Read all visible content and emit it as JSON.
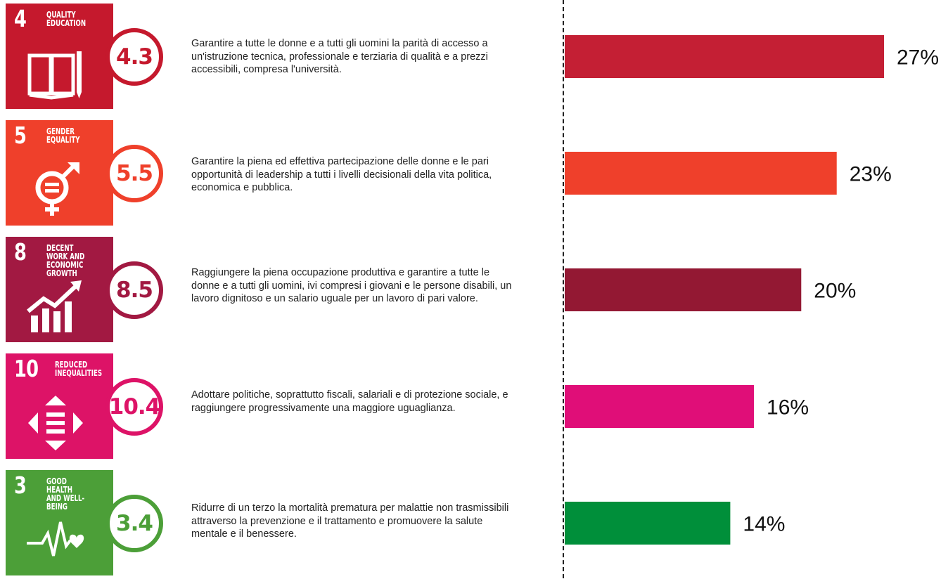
{
  "colors": {
    "goal4": "#C5192D",
    "goal5": "#EF402B",
    "goal8": "#A21942",
    "goal10": "#DD1367",
    "goal3": "#4C9F38",
    "bar4": "#C41F34",
    "bar5": "#EF402B",
    "bar8": "#931833",
    "bar10": "#E00E78",
    "bar3": "#008F3A"
  },
  "goals": [
    {
      "number": "4",
      "title": "QUALITY\nEDUCATION",
      "icon": "book-pencil-icon",
      "target": "4.3",
      "description": "Garantire a tutte le donne e a tutti gli uomini la parità di accesso a un'istruzione tecnica, professionale e terziaria di qualità e a prezzi accessibili, compresa l'università."
    },
    {
      "number": "5",
      "title": "GENDER\nEQUALITY",
      "icon": "gender-equality-icon",
      "target": "5.5",
      "description": "Garantire la piena ed effettiva partecipazione delle donne e le pari opportunità di leadership a tutti i livelli decisionali della vita politica, economica e pubblica."
    },
    {
      "number": "8",
      "title": "DECENT WORK AND\nECONOMIC GROWTH",
      "icon": "growth-chart-icon",
      "target": "8.5",
      "description": "Raggiungere la piena occupazione produttiva e garantire a tutte le donne e a tutti gli uomini, ivi compresi i giovani e le persone disabili, un lavoro dignitoso e un salario uguale per un lavoro di pari valore."
    },
    {
      "number": "10",
      "title": "REDUCED\nINEQUALITIES",
      "icon": "reduced-inequalities-icon",
      "target": "10.4",
      "description": "Adottare politiche, soprattutto fiscali, salariali e di protezione sociale, e raggiungere progressivamente una maggiore uguaglianza."
    },
    {
      "number": "3",
      "title": "GOOD HEALTH\nAND WELL-BEING",
      "icon": "heartbeat-icon",
      "target": "3.4",
      "description": "Ridurre di un terzo la mortalità prematura per malattie non trasmissibili attraverso la prevenzione e il trattamento e promuovere la salute mentale e il benessere."
    }
  ],
  "chart_data": {
    "type": "bar",
    "orientation": "horizontal",
    "categories": [
      "4.3",
      "5.5",
      "8.5",
      "10.4",
      "3.4"
    ],
    "values": [
      27,
      23,
      20,
      16,
      14
    ],
    "labels": [
      "27%",
      "23%",
      "20%",
      "16%",
      "14%"
    ],
    "unit": "%",
    "xlim": [
      0,
      27
    ],
    "title": "",
    "xlabel": "",
    "ylabel": "",
    "grid": false,
    "legend": "none"
  }
}
